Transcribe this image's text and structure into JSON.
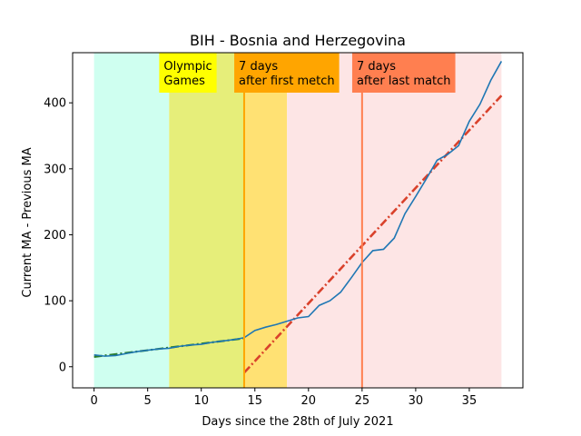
{
  "chart_data": {
    "type": "line",
    "title": "BIH - Bosnia and Herzegovina",
    "xlabel": "Days since the 28th of July 2021",
    "ylabel": "Current MA - Previous MA",
    "xlim": [
      -2,
      40
    ],
    "ylim": [
      -32,
      476
    ],
    "x_ticks": [
      0,
      5,
      10,
      15,
      20,
      25,
      30,
      35
    ],
    "y_ticks": [
      0,
      100,
      200,
      300,
      400
    ],
    "grid": false,
    "x": [
      0,
      1,
      2,
      3,
      4,
      5,
      6,
      7,
      8,
      9,
      10,
      11,
      12,
      13,
      14,
      15,
      16,
      17,
      18,
      19,
      20,
      21,
      22,
      23,
      24,
      25,
      26,
      27,
      28,
      29,
      30,
      31,
      32,
      33,
      34,
      35,
      36,
      37,
      38
    ],
    "series": [
      {
        "role": "actual",
        "color": "#1f77b4",
        "values": [
          18,
          16,
          17,
          20,
          23,
          25,
          27,
          28,
          31,
          33,
          34,
          37,
          39,
          41,
          44,
          55,
          60,
          64,
          69,
          74,
          76,
          93,
          100,
          113,
          135,
          158,
          176,
          178,
          195,
          232,
          258,
          285,
          313,
          322,
          335,
          372,
          398,
          434,
          463
        ]
      },
      {
        "role": "fit-early",
        "color": "#2a7d2a",
        "style": "dash-dot",
        "x": [
          0,
          14
        ],
        "values": [
          15,
          43
        ]
      },
      {
        "role": "fit-late",
        "color": "#d9412b",
        "style": "dash-dot",
        "x": [
          14,
          38
        ],
        "values": [
          -9,
          411
        ]
      }
    ],
    "bands": [
      {
        "x0": 0,
        "x1": 7,
        "color": "#cffff0"
      },
      {
        "x0": 7,
        "x1": 14,
        "color": "#e6ee7a"
      },
      {
        "x0": 14,
        "x1": 18,
        "color": "#ffe173"
      },
      {
        "x0": 18,
        "x1": 38,
        "color": "#fde5e5"
      }
    ],
    "vlines": [
      {
        "x": 14,
        "color": "#ffa500"
      },
      {
        "x": 25,
        "color": "#ff7f50"
      }
    ],
    "annotations": [
      {
        "lines": [
          "Olympic",
          "Games"
        ],
        "x": 7,
        "anchor_x": 6.5,
        "color": "#ffff00"
      },
      {
        "lines": [
          "7 days",
          "after first metch"
        ],
        "x": 14,
        "anchor_x": 13.5,
        "color": "#ffa500"
      },
      {
        "lines": [
          "7 days",
          "after last match"
        ],
        "x": 25,
        "anchor_x": 24.5,
        "color": "#ff7f50"
      }
    ]
  }
}
